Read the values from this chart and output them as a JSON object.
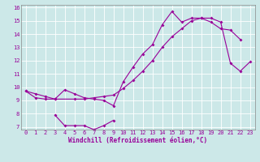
{
  "xlabel": "Windchill (Refroidissement éolien,°C)",
  "bg_color": "#cce8e8",
  "line_color": "#990099",
  "grid_color": "#ffffff",
  "xlim": [
    -0.5,
    23.5
  ],
  "ylim": [
    6.8,
    16.2
  ],
  "yticks": [
    7,
    8,
    9,
    10,
    11,
    12,
    13,
    14,
    15,
    16
  ],
  "xticks": [
    0,
    1,
    2,
    3,
    4,
    5,
    6,
    7,
    8,
    9,
    10,
    11,
    12,
    13,
    14,
    15,
    16,
    17,
    18,
    19,
    20,
    21,
    22,
    23
  ],
  "line1_x": [
    0,
    1,
    2,
    3,
    4,
    5,
    6,
    7,
    8,
    9,
    10,
    11,
    12,
    13,
    14,
    15,
    16,
    17,
    18,
    19,
    20,
    21,
    22
  ],
  "line1_y": [
    9.7,
    9.2,
    9.1,
    9.1,
    9.8,
    9.5,
    9.2,
    9.1,
    9.0,
    8.6,
    10.4,
    11.5,
    12.5,
    13.2,
    14.7,
    15.7,
    14.9,
    15.2,
    15.2,
    14.9,
    14.4,
    14.3,
    13.6
  ],
  "line2_x": [
    3,
    4,
    5,
    6,
    7,
    8,
    9
  ],
  "line2_y": [
    7.9,
    7.1,
    7.1,
    7.1,
    6.8,
    7.1,
    7.5
  ],
  "line3_x": [
    0,
    1,
    2,
    3,
    5,
    6,
    7,
    8,
    9,
    10,
    11,
    12,
    13,
    14,
    15,
    16,
    17,
    18,
    19,
    20,
    21,
    22,
    23
  ],
  "line3_y": [
    9.7,
    9.5,
    9.3,
    9.1,
    9.1,
    9.1,
    9.2,
    9.3,
    9.4,
    9.9,
    10.5,
    11.2,
    12.0,
    13.0,
    13.8,
    14.4,
    15.0,
    15.2,
    15.2,
    14.9,
    11.8,
    11.2,
    11.9
  ]
}
